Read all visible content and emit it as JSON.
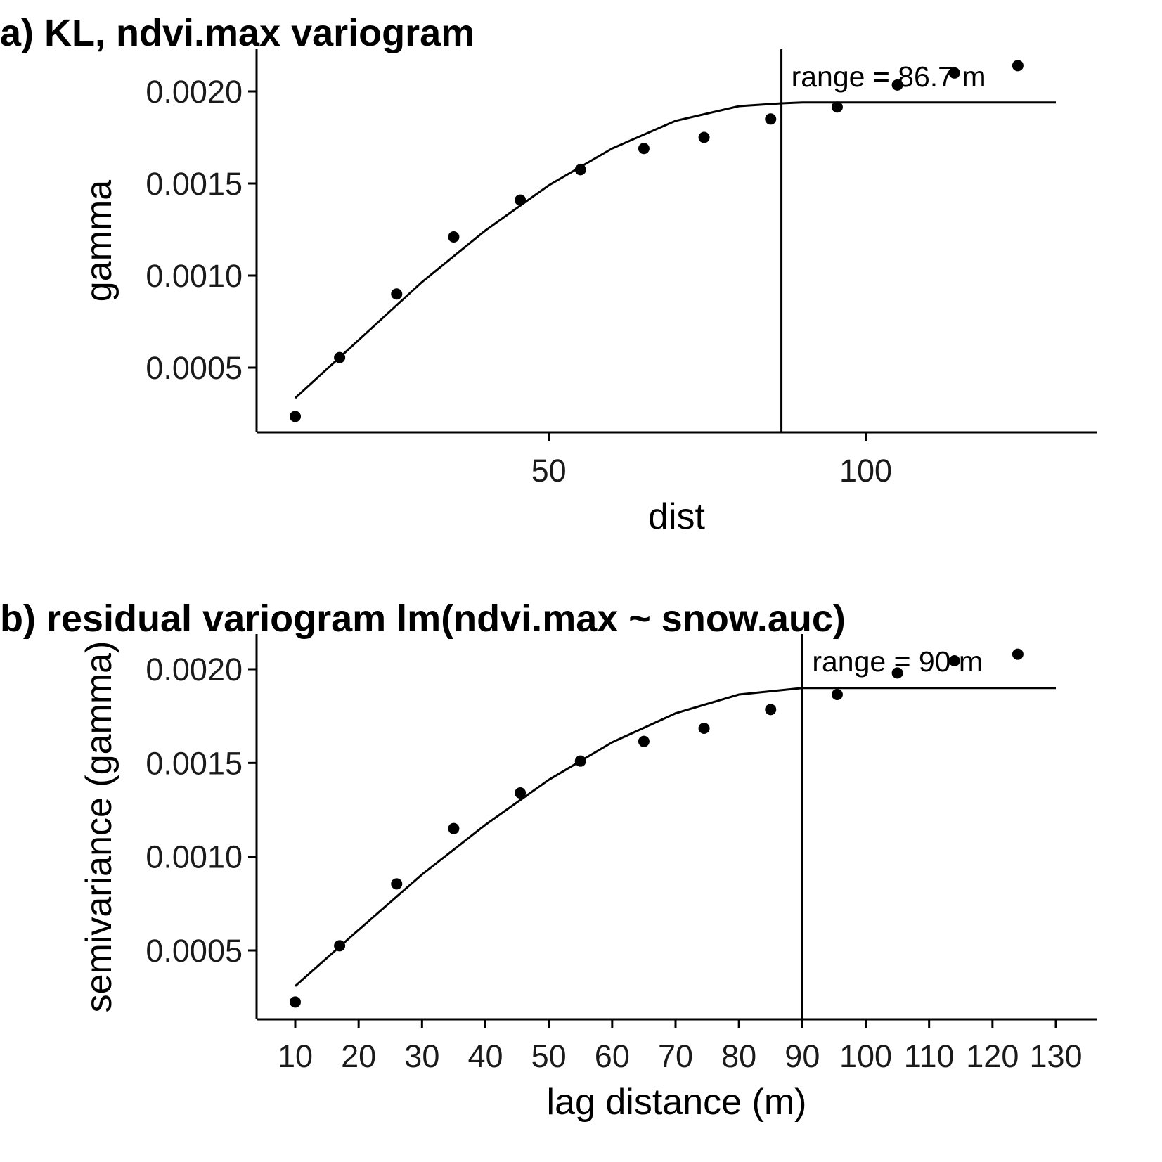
{
  "chart_data": [
    {
      "type": "scatter",
      "panel_title": "a) KL, ndvi.max variogram",
      "xlabel": "dist",
      "ylabel": "gamma",
      "xlim": [
        4,
        136
      ],
      "ylim": [
        0.00015,
        0.00223
      ],
      "x_ticks": [
        50,
        100
      ],
      "x_tick_labels": [
        "50",
        "100"
      ],
      "y_ticks": [
        0.0005,
        0.001,
        0.0015,
        0.002
      ],
      "y_tick_labels": [
        "0.0005",
        "0.0010",
        "0.0015",
        "0.0020"
      ],
      "points": {
        "x": [
          10,
          17,
          26,
          35,
          45.5,
          55,
          65,
          74.5,
          85,
          95.5,
          105,
          114,
          124
        ],
        "y": [
          0.000235,
          0.000555,
          0.0009,
          0.00121,
          0.00141,
          0.001575,
          0.00169,
          0.00175,
          0.00185,
          0.001915,
          0.002035,
          0.0021,
          0.00214
        ]
      },
      "fitted_model": {
        "x": [
          10,
          20,
          30,
          40,
          50,
          60,
          70,
          80,
          86.7,
          90,
          130
        ],
        "y": [
          0.000335,
          0.00065,
          0.000965,
          0.001245,
          0.00149,
          0.00169,
          0.00184,
          0.00192,
          0.001935,
          0.00194,
          0.00194
        ]
      },
      "range": 86.7,
      "sill": 0.00194,
      "annotation": "range = 86.7 m"
    },
    {
      "type": "scatter",
      "panel_title": "b) residual variogram lm(ndvi.max ~ snow.auc)",
      "xlabel": "lag distance (m)",
      "ylabel": "semivariance (gamma)",
      "xlim": [
        4,
        136
      ],
      "ylim": [
        0.00015,
        0.00223
      ],
      "x_ticks": [
        10,
        20,
        30,
        40,
        50,
        60,
        70,
        80,
        90,
        100,
        110,
        120,
        130
      ],
      "x_tick_labels": [
        "10",
        "20",
        "30",
        "40",
        "50",
        "60",
        "70",
        "80",
        "90",
        "100",
        "110",
        "120",
        "130"
      ],
      "y_ticks": [
        0.0005,
        0.001,
        0.0015,
        0.002
      ],
      "y_tick_labels": [
        "0.0005",
        "0.0010",
        "0.0015",
        "0.0020"
      ],
      "points": {
        "x": [
          10,
          17,
          26,
          35,
          45.5,
          55,
          65,
          74.5,
          85,
          95.5,
          105,
          114,
          124
        ],
        "y": [
          0.000225,
          0.000525,
          0.000855,
          0.00115,
          0.00134,
          0.00151,
          0.001615,
          0.001685,
          0.001785,
          0.001865,
          0.00198,
          0.002045,
          0.00208
        ]
      },
      "fitted_model": {
        "x": [
          10,
          20,
          30,
          40,
          50,
          60,
          70,
          80,
          90,
          130
        ],
        "y": [
          0.00031,
          0.00061,
          0.000905,
          0.00117,
          0.00141,
          0.00161,
          0.001765,
          0.001865,
          0.0019,
          0.0019
        ]
      },
      "range": 90,
      "sill": 0.0019,
      "annotation": "range = 90 m"
    }
  ]
}
